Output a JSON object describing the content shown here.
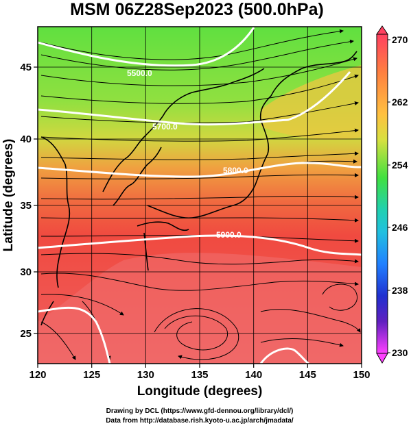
{
  "title": "MSM 06Z28Sep2023 (500.0hPa)",
  "axes": {
    "xlabel": "Longitude (degrees)",
    "ylabel": "Latitude  (degrees)",
    "xticks": [
      "120",
      "125",
      "130",
      "135",
      "140",
      "145",
      "150"
    ],
    "yticks": [
      "25",
      "30",
      "35",
      "40",
      "45"
    ]
  },
  "colorbar": {
    "ticks": [
      "270",
      "262",
      "254",
      "246",
      "238",
      "230"
    ],
    "colors": [
      "#ff4060",
      "#ff8040",
      "#ffc040",
      "#e0e040",
      "#a0e040",
      "#40e040",
      "#20d0a0",
      "#20c0e0",
      "#2080ff",
      "#2040e0",
      "#4020c0",
      "#c020c0",
      "#ff40ff"
    ]
  },
  "contour_labels": {
    "c5500": "5500.0",
    "c5700": "5700.0",
    "c5800": "5800.0",
    "c5900": "5900.0"
  },
  "credits": {
    "line1": "Drawing by DCL (https://www.gfd-dennou.org/library/dcl/)",
    "line2": "Data from http://database.rish.kyoto-u.ac.jp/arch/jmadata/"
  },
  "field_colors": {
    "green": "#70e040",
    "yellow": "#e0d840",
    "orange": "#f08040",
    "red": "#f05040",
    "pink": "#f07070"
  }
}
